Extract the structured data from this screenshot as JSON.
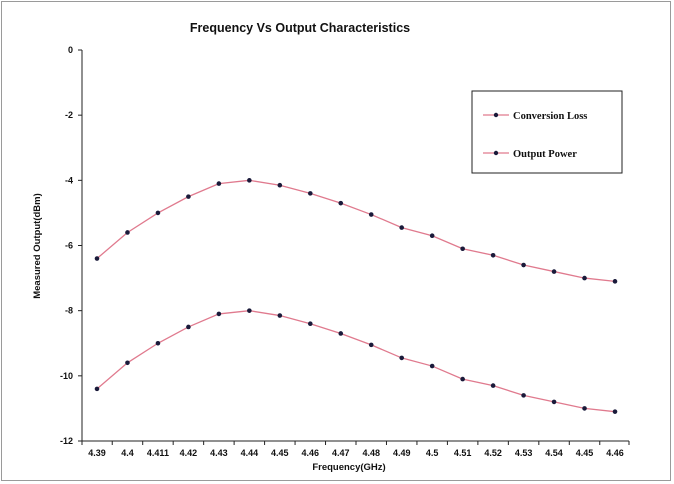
{
  "chart_data": {
    "type": "line",
    "title": "Frequency Vs Output Characteristics",
    "xlabel": "Frequency(GHz)",
    "ylabel": "Measured Output(dBm)",
    "categories": [
      "4.39",
      "4.4",
      "4.411",
      "4.42",
      "4.43",
      "4.44",
      "4.45",
      "4.46",
      "4.47",
      "4.48",
      "4.49",
      "4.5",
      "4.51",
      "4.52",
      "4.53",
      "4.54",
      "4.45",
      "4.46"
    ],
    "ylim": [
      -12,
      0
    ],
    "yticks": [
      "0",
      "-2",
      "-4",
      "-6",
      "-8",
      "-10",
      "-12"
    ],
    "grid": false,
    "legend_position": "top-right",
    "series": [
      {
        "name": "Conversion Loss",
        "color": "#e07a8e",
        "values": [
          -10.4,
          -9.6,
          -9.0,
          -8.5,
          -8.1,
          -8.0,
          -8.15,
          -8.4,
          -8.7,
          -9.05,
          -9.45,
          -9.7,
          -10.1,
          -10.3,
          -10.6,
          -10.8,
          -11.0,
          -11.1
        ]
      },
      {
        "name": "Output Power",
        "color": "#e07a8e",
        "values": [
          -6.4,
          -5.6,
          -5.0,
          -4.5,
          -4.1,
          -4.0,
          -4.15,
          -4.4,
          -4.7,
          -5.05,
          -5.45,
          -5.7,
          -6.1,
          -6.3,
          -6.6,
          -6.8,
          -7.0,
          -7.1
        ]
      }
    ],
    "marker_color": "#1a1a3a"
  }
}
